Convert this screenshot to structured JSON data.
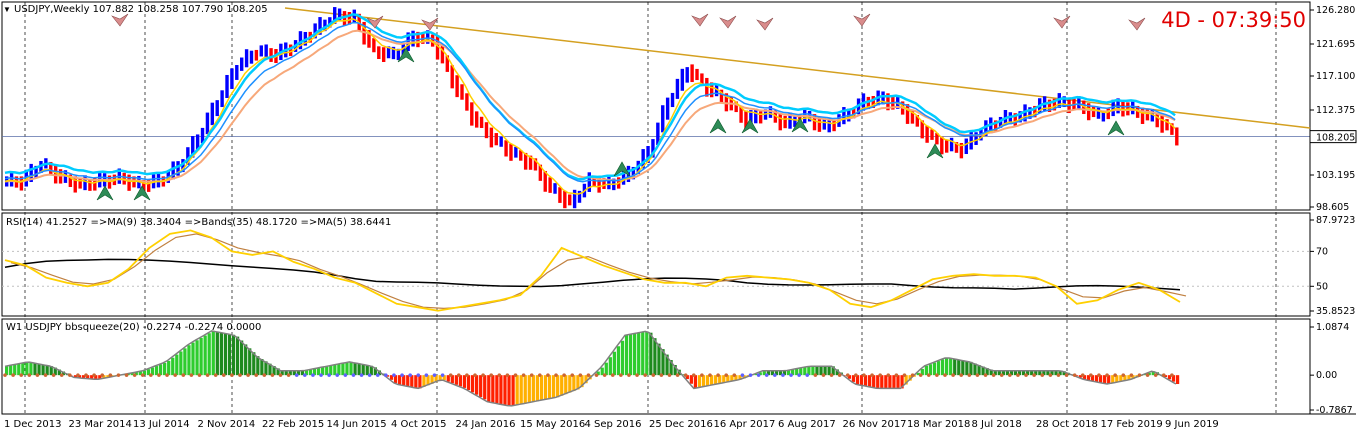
{
  "colors": {
    "up": "#0000ff",
    "down": "#ff0000",
    "ema_fast": "#00ccff",
    "ema_slow": "#f7a87a",
    "ema_mid": "#ffd000",
    "trend": "#d4a020",
    "rsi": "#ffd000",
    "rsi_ma": "#c08040",
    "rsi_bands": "#000000",
    "bbs_pos": "#2ecc2e",
    "bbs_neg": "#ff3300",
    "bbs_dot": "#cc6633",
    "grid": "#000000"
  },
  "main": {
    "header": "USDJPY,Weekly  107.882 108.258 107.790 108.205",
    "timer": "4D - 07:39:50",
    "price_label": "108.205",
    "y_ticks": [
      "126.280",
      "121.695",
      "117.100",
      "112.375",
      "108.205",
      "103.195",
      "98.605"
    ]
  },
  "rsi": {
    "header": "RSI(14) 41.2527  =>MA(9) 38.3404  =>Bands(35) 48.1720  =>MA(5) 38.6441",
    "y_ticks": [
      "87.9723",
      "70",
      "50",
      "35.8523"
    ]
  },
  "bbs": {
    "header": "W1 USDJPY bbsqueeze(20) -0.2274 -0.2274 0.0000",
    "y_ticks": [
      "1.0874",
      "0.00",
      "-0.7867"
    ]
  },
  "x_labels": [
    "1 Dec 2013",
    "23 Mar 2014",
    "13 Jul 2014",
    "2 Nov 2014",
    "22 Feb 2015",
    "14 Jun 2015",
    "4 Oct 2015",
    "24 Jan 2016",
    "15 May 2016",
    "4 Sep 2016",
    "25 Dec 2016",
    "16 Apr 2017",
    "6 Aug 2017",
    "26 Nov 2017",
    "18 Mar 2018",
    "8 Jul 2018",
    "28 Oct 2018",
    "17 Feb 2019",
    "9 Jun 2019"
  ],
  "chart_data": [
    {
      "type": "line",
      "title": "USDJPY,Weekly",
      "ylim": [
        98.605,
        126.28
      ],
      "series": [
        {
          "values": [
            102,
            104.5,
            102.5,
            101.5,
            102,
            102.5,
            101.5,
            102,
            104,
            108,
            113,
            118,
            120,
            119.5,
            121,
            123,
            125,
            124.5,
            120,
            119.5,
            122,
            121.5,
            116,
            111,
            108,
            106,
            104.5,
            101,
            99,
            102,
            101.5,
            103,
            106,
            113,
            117.5,
            115,
            113,
            110.5,
            111.5,
            110,
            111,
            109.5,
            111,
            113,
            113.5,
            112,
            109,
            107,
            106.5,
            109,
            110.5,
            111,
            112.5,
            113,
            112.5,
            111,
            112.5,
            111.5,
            110.5,
            108.2
          ]
        }
      ]
    },
    {
      "type": "line",
      "title": "RSI(14)",
      "ylim": [
        35.85,
        87.97
      ],
      "series": [
        {
          "values": [
            65,
            62,
            55,
            52,
            50,
            52,
            60,
            72,
            80,
            82,
            78,
            70,
            68,
            70,
            64,
            60,
            55,
            52,
            46,
            40,
            38,
            36,
            38,
            40,
            42,
            45,
            56,
            72,
            67,
            62,
            58,
            54,
            52,
            52,
            50,
            55,
            56,
            55,
            54,
            52,
            48,
            40,
            38,
            42,
            48,
            54,
            56,
            57,
            56,
            56,
            55,
            50,
            40,
            42,
            48,
            52,
            48,
            41
          ]
        }
      ]
    },
    {
      "type": "bar",
      "title": "W1 USDJPY bbsqueeze(20)",
      "ylim": [
        -0.7867,
        1.0874
      ],
      "series": [
        {
          "values": [
            0.2,
            0.3,
            0.2,
            -0.05,
            -0.1,
            0,
            0.1,
            0.3,
            0.7,
            1.0,
            0.9,
            0.4,
            0.1,
            0.1,
            0.2,
            0.3,
            0.2,
            -0.2,
            -0.3,
            -0.1,
            -0.3,
            -0.6,
            -0.7,
            -0.6,
            -0.5,
            -0.3,
            0.2,
            0.9,
            1.0,
            0.3,
            -0.3,
            -0.2,
            -0.1,
            0.1,
            0.1,
            0.2,
            0.2,
            -0.2,
            -0.3,
            -0.3,
            0.2,
            0.4,
            0.3,
            0.1,
            0.1,
            0.1,
            0.1,
            -0.1,
            -0.2,
            -0.1,
            0.1,
            -0.2
          ]
        }
      ]
    }
  ]
}
